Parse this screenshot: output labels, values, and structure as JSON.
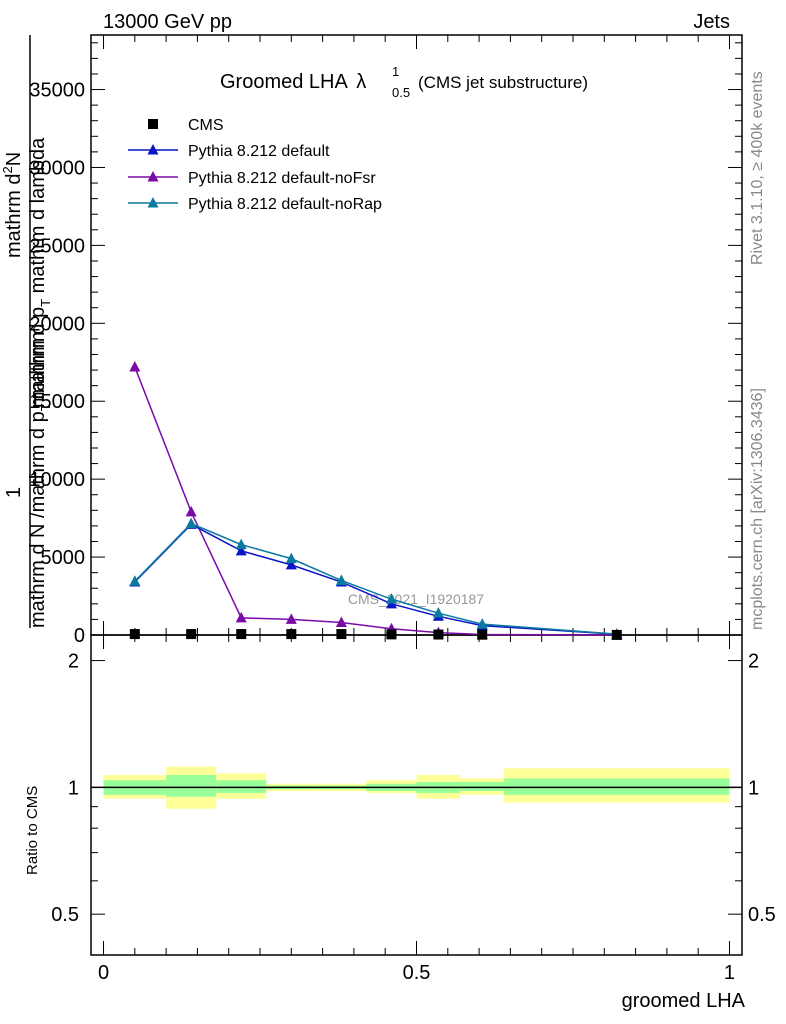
{
  "header": {
    "left": "13000 GeV pp",
    "right": "Jets"
  },
  "title": {
    "main": "Groomed LHA",
    "lambda": "λ",
    "sup": "1",
    "sub": "0.5",
    "note": "(CMS jet substructure)"
  },
  "side_text": {
    "rivet": "Rivet 3.1.10, ≥ 400k events",
    "mcplots": "mcplots.cern.ch [arXiv:1306.3436]"
  },
  "watermark": "CMS_2021_I1920187",
  "colors": {
    "cms": "#000000",
    "default": "#0a14c8",
    "noFsr": "#7a0aa8",
    "noRap": "#0a7aa0",
    "band_outer": "#ffff99",
    "band_inner": "#99ff99"
  },
  "chart_data": [
    {
      "type": "line",
      "ylabel_lines": [
        "1",
        "mathrm d N /mathrm d p_mathrm T",
        "mathrm d²N",
        "mathrm d p_mathrm T mathrm d lambda"
      ],
      "ylabel_line1": "1",
      "ylabel_line2": "mathrm d N /mathrm d p",
      "ylabel_line2_sub": "T",
      "ylabel_line2_tail": "mathrm",
      "ylabel_line3": "mathrm d",
      "ylabel_line3_sup": "2",
      "ylabel_line3_tail": "N",
      "ylabel_line4": "mathrm d p",
      "ylabel_line4_sub": "T",
      "ylabel_line4_tail": " mathrm d lambda",
      "xlim": [
        -0.02,
        1.02
      ],
      "ylim": [
        0,
        38500
      ],
      "yticks": [
        0,
        5000,
        10000,
        15000,
        20000,
        25000,
        30000,
        35000
      ],
      "ytick_labels": [
        "0",
        "5000",
        "10000",
        "15000",
        "20000",
        "25000",
        "30000",
        "35000"
      ],
      "legend_position": "top-left",
      "series": [
        {
          "name": "CMS",
          "marker": "square",
          "x": [
            0.05,
            0.14,
            0.22,
            0.3,
            0.38,
            0.46,
            0.535,
            0.605,
            0.82
          ],
          "y": [
            60,
            60,
            60,
            60,
            60,
            40,
            30,
            20,
            5
          ]
        },
        {
          "name": "Pythia 8.212 default",
          "marker": "triangle",
          "x": [
            0.05,
            0.14,
            0.22,
            0.3,
            0.38,
            0.46,
            0.535,
            0.605,
            0.82
          ],
          "y": [
            3400,
            7100,
            5400,
            4500,
            3400,
            2000,
            1200,
            600,
            50
          ]
        },
        {
          "name": "Pythia 8.212 default-noFsr",
          "marker": "triangle",
          "x": [
            0.05,
            0.14,
            0.22,
            0.3,
            0.38,
            0.46,
            0.535,
            0.605,
            0.82
          ],
          "y": [
            17200,
            7900,
            1100,
            1000,
            800,
            400,
            150,
            30,
            2
          ]
        },
        {
          "name": "Pythia 8.212 default-noRap",
          "marker": "triangle",
          "x": [
            0.05,
            0.14,
            0.22,
            0.3,
            0.38,
            0.46,
            0.535,
            0.605,
            0.82
          ],
          "y": [
            3450,
            7150,
            5800,
            4900,
            3500,
            2300,
            1400,
            700,
            60
          ]
        }
      ]
    },
    {
      "type": "area",
      "ylabel": "Ratio to CMS",
      "xlabel": "groomed LHA",
      "xlim": [
        -0.02,
        1.02
      ],
      "ylim": [
        0.4,
        2.3
      ],
      "yscale": "log",
      "yticks": [
        0.5,
        1,
        2
      ],
      "ytick_labels": [
        "0.5",
        "1",
        "2"
      ],
      "xticks": [
        0,
        0.5,
        1
      ],
      "xtick_labels": [
        "0",
        "0.5",
        "1"
      ],
      "reference_line": 1,
      "bins": [
        {
          "lo": 0.0,
          "hi": 0.1,
          "inner": [
            0.96,
            1.04
          ],
          "outer": [
            0.94,
            1.07
          ]
        },
        {
          "lo": 0.1,
          "hi": 0.18,
          "inner": [
            0.95,
            1.07
          ],
          "outer": [
            0.89,
            1.12
          ]
        },
        {
          "lo": 0.18,
          "hi": 0.26,
          "inner": [
            0.97,
            1.04
          ],
          "outer": [
            0.94,
            1.08
          ]
        },
        {
          "lo": 0.26,
          "hi": 0.34,
          "inner": [
            0.99,
            1.01
          ],
          "outer": [
            0.98,
            1.02
          ]
        },
        {
          "lo": 0.34,
          "hi": 0.42,
          "inner": [
            0.99,
            1.01
          ],
          "outer": [
            0.98,
            1.02
          ]
        },
        {
          "lo": 0.42,
          "hi": 0.5,
          "inner": [
            0.98,
            1.02
          ],
          "outer": [
            0.97,
            1.04
          ]
        },
        {
          "lo": 0.5,
          "hi": 0.57,
          "inner": [
            0.97,
            1.03
          ],
          "outer": [
            0.94,
            1.07
          ]
        },
        {
          "lo": 0.57,
          "hi": 0.64,
          "inner": [
            0.98,
            1.03
          ],
          "outer": [
            0.96,
            1.05
          ]
        },
        {
          "lo": 0.64,
          "hi": 1.0,
          "inner": [
            0.96,
            1.05
          ],
          "outer": [
            0.92,
            1.11
          ]
        }
      ]
    }
  ]
}
